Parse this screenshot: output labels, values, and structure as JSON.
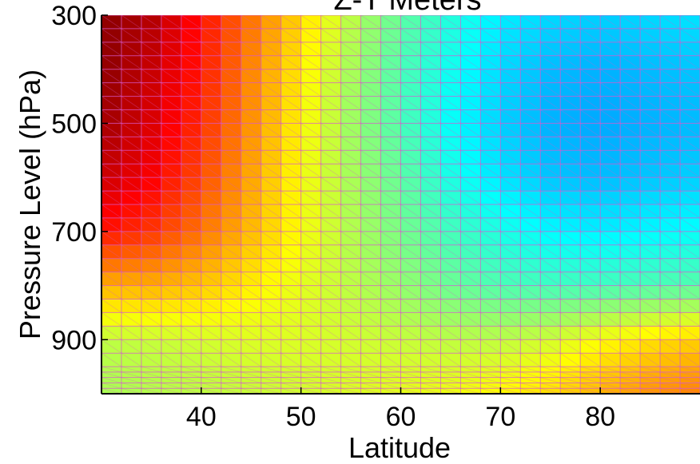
{
  "chart_data": {
    "type": "heatmap",
    "title": "Z-T Meters",
    "xlabel": "Latitude",
    "ylabel": "Pressure Level (hPa)",
    "xlim": [
      30,
      90
    ],
    "ylim": [
      1000,
      300
    ],
    "y_inverted": true,
    "xticks": [
      40,
      50,
      60,
      70,
      80
    ],
    "yticks": [
      300,
      500,
      700,
      900
    ],
    "colormap": "jet",
    "grid_color": "#d85ad0",
    "color_scale_range": [
      0,
      1
    ],
    "anchors": [
      {
        "p": 300,
        "lat": [
          30,
          35,
          40,
          45,
          50,
          55,
          60,
          65,
          70,
          75,
          80,
          85,
          90
        ],
        "v": [
          0.99,
          0.95,
          0.86,
          0.76,
          0.66,
          0.56,
          0.47,
          0.41,
          0.36,
          0.34,
          0.33,
          0.34,
          0.35
        ]
      },
      {
        "p": 400,
        "lat": [
          30,
          35,
          40,
          45,
          50,
          55,
          60,
          65,
          70,
          75,
          80,
          85,
          90
        ],
        "v": [
          0.99,
          0.93,
          0.85,
          0.74,
          0.64,
          0.54,
          0.45,
          0.39,
          0.34,
          0.31,
          0.3,
          0.31,
          0.32
        ]
      },
      {
        "p": 500,
        "lat": [
          30,
          35,
          40,
          45,
          50,
          55,
          60,
          65,
          70,
          75,
          80,
          85,
          90
        ],
        "v": [
          0.97,
          0.91,
          0.83,
          0.73,
          0.63,
          0.53,
          0.45,
          0.38,
          0.33,
          0.3,
          0.29,
          0.3,
          0.31
        ]
      },
      {
        "p": 600,
        "lat": [
          30,
          35,
          40,
          45,
          50,
          55,
          60,
          65,
          70,
          75,
          80,
          85,
          90
        ],
        "v": [
          0.93,
          0.88,
          0.8,
          0.71,
          0.62,
          0.54,
          0.47,
          0.4,
          0.35,
          0.32,
          0.31,
          0.32,
          0.33
        ]
      },
      {
        "p": 700,
        "lat": [
          30,
          35,
          40,
          45,
          50,
          55,
          60,
          65,
          70,
          75,
          80,
          85,
          90
        ],
        "v": [
          0.86,
          0.82,
          0.76,
          0.69,
          0.62,
          0.55,
          0.49,
          0.44,
          0.4,
          0.37,
          0.36,
          0.37,
          0.38
        ]
      },
      {
        "p": 800,
        "lat": [
          30,
          35,
          40,
          45,
          50,
          55,
          60,
          65,
          70,
          75,
          80,
          85,
          90
        ],
        "v": [
          0.7,
          0.7,
          0.68,
          0.64,
          0.6,
          0.56,
          0.52,
          0.48,
          0.45,
          0.44,
          0.44,
          0.45,
          0.46
        ]
      },
      {
        "p": 900,
        "lat": [
          30,
          35,
          40,
          45,
          50,
          55,
          60,
          65,
          70,
          75,
          80,
          85,
          90
        ],
        "v": [
          0.56,
          0.57,
          0.58,
          0.59,
          0.59,
          0.58,
          0.57,
          0.56,
          0.56,
          0.58,
          0.62,
          0.65,
          0.67
        ]
      },
      {
        "p": 1000,
        "lat": [
          30,
          35,
          40,
          45,
          50,
          55,
          60,
          65,
          70,
          75,
          80,
          85,
          90
        ],
        "v": [
          0.54,
          0.55,
          0.56,
          0.57,
          0.58,
          0.59,
          0.6,
          0.61,
          0.63,
          0.66,
          0.7,
          0.73,
          0.75
        ]
      }
    ]
  }
}
